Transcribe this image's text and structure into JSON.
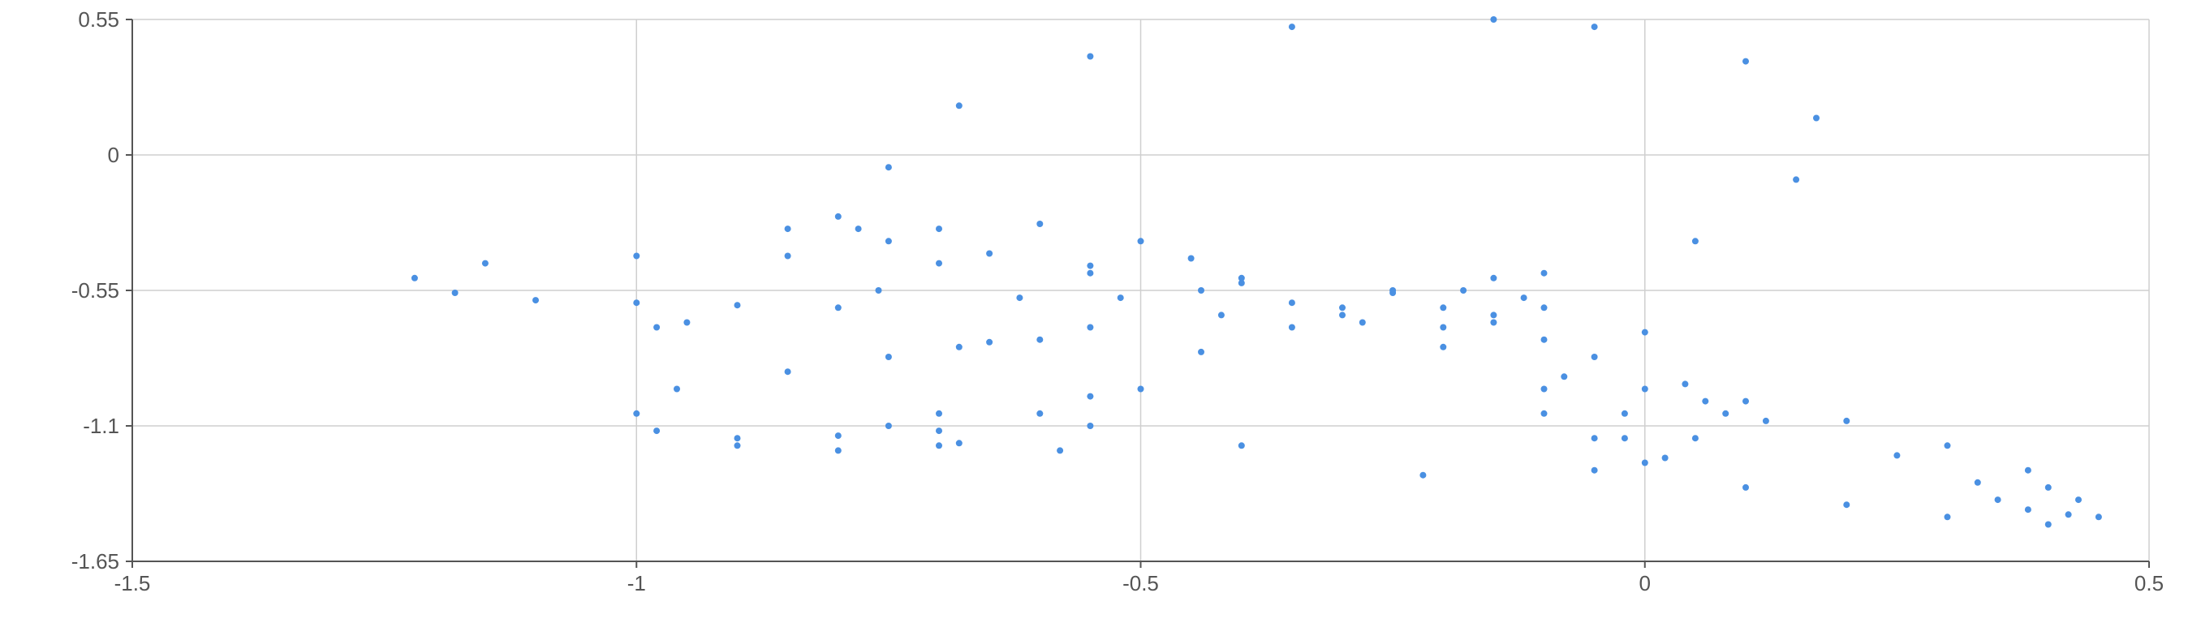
{
  "chart_data": {
    "type": "scatter",
    "title": "",
    "xlabel": "",
    "ylabel": "",
    "xlim": [
      -1.5,
      0.5
    ],
    "ylim": [
      -1.65,
      0.55
    ],
    "grid": true,
    "legend": "none",
    "x_ticks": [
      {
        "value": -1.5,
        "label": "-1.5"
      },
      {
        "value": -1,
        "label": "-1"
      },
      {
        "value": -0.5,
        "label": "-0.5"
      },
      {
        "value": 0,
        "label": "0"
      },
      {
        "value": 0.5,
        "label": "0.5"
      }
    ],
    "y_ticks": [
      {
        "value": 0.55,
        "label": "0.55"
      },
      {
        "value": 0,
        "label": "0"
      },
      {
        "value": -0.55,
        "label": "-0.55"
      },
      {
        "value": -1.1,
        "label": "-1.1"
      },
      {
        "value": -1.65,
        "label": "-1.65"
      }
    ],
    "marker_color": "#4a90e2",
    "series": [
      {
        "values": [
          [
            -0.15,
            0.55
          ],
          [
            -0.35,
            0.52
          ],
          [
            -0.55,
            0.4
          ],
          [
            -0.68,
            0.2
          ],
          [
            -0.75,
            -0.05
          ],
          [
            -0.78,
            -0.3
          ],
          [
            -0.76,
            -0.55
          ],
          [
            -0.68,
            -0.78
          ],
          [
            -0.55,
            -0.98
          ],
          [
            -0.4,
            -1.18
          ],
          [
            -0.22,
            -1.3
          ],
          [
            -0.05,
            -1.28
          ],
          [
            -0.02,
            -1.15
          ],
          [
            -0.1,
            -0.95
          ],
          [
            -0.2,
            -0.78
          ],
          [
            -0.3,
            -0.62
          ],
          [
            -0.25,
            -0.55
          ],
          [
            -0.1,
            -0.48
          ],
          [
            0.05,
            -0.35
          ],
          [
            0.15,
            -0.1
          ],
          [
            0.17,
            0.15
          ],
          [
            0.1,
            0.38
          ],
          [
            -0.05,
            0.52
          ],
          [
            -1.22,
            -0.5
          ],
          [
            -1.15,
            -0.44
          ],
          [
            -1.0,
            -0.41
          ],
          [
            -0.85,
            -0.41
          ],
          [
            -0.7,
            -0.44
          ],
          [
            -0.55,
            -0.48
          ],
          [
            -0.4,
            -0.52
          ],
          [
            -0.25,
            -0.56
          ],
          [
            -0.1,
            -0.62
          ],
          [
            0.0,
            -0.72
          ],
          [
            -1.18,
            -0.56
          ],
          [
            -1.1,
            -0.59
          ],
          [
            -1.0,
            -0.6
          ],
          [
            -0.9,
            -0.61
          ],
          [
            -0.8,
            -0.62
          ],
          [
            -1.0,
            -1.05
          ],
          [
            -0.98,
            -1.12
          ],
          [
            -0.9,
            -1.15
          ],
          [
            -0.8,
            -1.14
          ],
          [
            -0.7,
            -1.12
          ],
          [
            -0.6,
            -1.05
          ],
          [
            -0.5,
            -0.95
          ],
          [
            -0.44,
            -0.8
          ],
          [
            -0.42,
            -0.65
          ],
          [
            -0.44,
            -0.55
          ],
          [
            -0.96,
            -0.95
          ],
          [
            -0.85,
            -0.88
          ],
          [
            -0.75,
            -0.82
          ],
          [
            -0.65,
            -0.76
          ],
          [
            -0.55,
            -0.7
          ],
          [
            -0.9,
            -1.18
          ],
          [
            -0.8,
            -1.2
          ],
          [
            -0.7,
            -1.18
          ],
          [
            -0.85,
            -0.3
          ],
          [
            -0.8,
            -0.25
          ],
          [
            -0.75,
            -0.35
          ],
          [
            -0.7,
            -0.3
          ],
          [
            -0.65,
            -0.4
          ],
          [
            -0.6,
            -0.28
          ],
          [
            -0.55,
            -0.45
          ],
          [
            -0.5,
            -0.35
          ],
          [
            -0.45,
            -0.42
          ],
          [
            -0.4,
            -0.5
          ],
          [
            -0.35,
            -0.6
          ],
          [
            -0.3,
            -0.65
          ],
          [
            -0.2,
            -0.7
          ],
          [
            -0.15,
            -0.68
          ],
          [
            -0.2,
            -0.62
          ],
          [
            -0.18,
            -0.55
          ],
          [
            -0.15,
            -0.5
          ],
          [
            -0.12,
            -0.58
          ],
          [
            -0.15,
            -0.65
          ],
          [
            -0.08,
            -0.9
          ],
          [
            0.0,
            -0.95
          ],
          [
            0.1,
            -1.0
          ],
          [
            0.2,
            -1.08
          ],
          [
            0.3,
            -1.18
          ],
          [
            0.38,
            -1.28
          ],
          [
            0.43,
            -1.4
          ],
          [
            0.45,
            -1.47
          ],
          [
            0.4,
            -1.5
          ],
          [
            0.3,
            -1.47
          ],
          [
            0.2,
            -1.42
          ],
          [
            0.1,
            -1.35
          ],
          [
            0.0,
            -1.25
          ],
          [
            -0.05,
            -1.15
          ],
          [
            -0.1,
            -1.05
          ],
          [
            0.35,
            -1.4
          ],
          [
            0.38,
            -1.44
          ],
          [
            0.42,
            -1.46
          ],
          [
            0.4,
            -1.35
          ],
          [
            0.02,
            -1.23
          ],
          [
            0.05,
            -1.15
          ],
          [
            0.08,
            -1.05
          ],
          [
            0.04,
            -0.93
          ],
          [
            -0.98,
            -0.7
          ],
          [
            -0.95,
            -0.68
          ],
          [
            -0.6,
            -0.75
          ],
          [
            -0.58,
            -1.2
          ],
          [
            -0.55,
            -1.1
          ],
          [
            -0.75,
            -1.1
          ],
          [
            -0.7,
            -1.05
          ],
          [
            -0.68,
            -1.17
          ],
          [
            -0.62,
            -0.58
          ],
          [
            -0.52,
            -0.58
          ],
          [
            -0.35,
            -0.7
          ],
          [
            -0.28,
            -0.68
          ],
          [
            -0.1,
            -0.75
          ],
          [
            -0.05,
            -0.82
          ],
          [
            -0.02,
            -1.05
          ],
          [
            0.06,
            -1.0
          ],
          [
            0.12,
            -1.08
          ],
          [
            0.25,
            -1.22
          ],
          [
            0.33,
            -1.33
          ]
        ]
      }
    ]
  }
}
